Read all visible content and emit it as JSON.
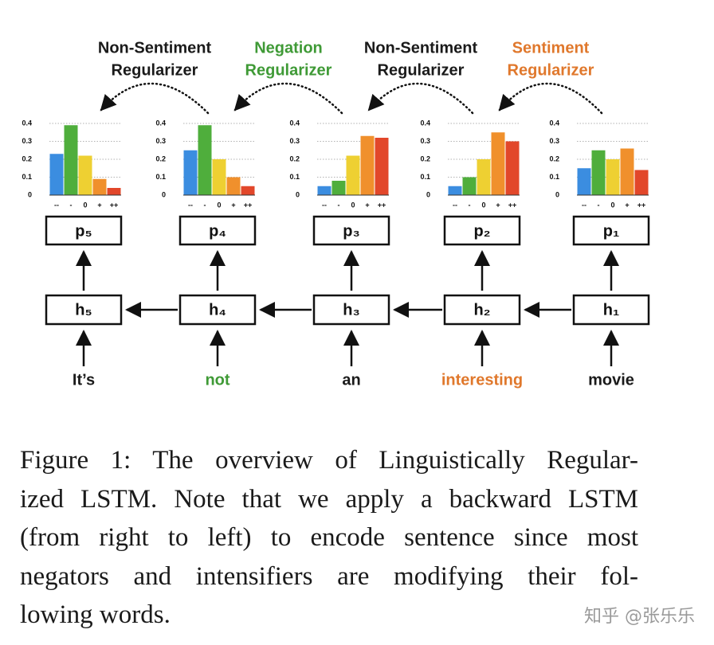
{
  "regularizers": [
    {
      "lines": [
        "Non-Sentiment",
        "Regularizer"
      ],
      "color": "#1a1a1a"
    },
    {
      "lines": [
        "Negation",
        "Regularizer"
      ],
      "color": "#3f9a36"
    },
    {
      "lines": [
        "Non-Sentiment",
        "Regularizer"
      ],
      "color": "#1a1a1a"
    },
    {
      "lines": [
        "Sentiment",
        "Regularizer"
      ],
      "color": "#e0782c"
    }
  ],
  "chart_data": [
    {
      "type": "bar",
      "categories": [
        "--",
        "-",
        "0",
        "+",
        "++"
      ],
      "values": [
        0.23,
        0.39,
        0.22,
        0.09,
        0.04
      ],
      "colors": [
        "#3b8de0",
        "#4fae3c",
        "#eed032",
        "#f0902c",
        "#e2472a"
      ],
      "ylim": [
        0,
        0.4
      ],
      "yticks": [
        0,
        0.1,
        0.2,
        0.3,
        0.4
      ],
      "grid": true
    },
    {
      "type": "bar",
      "categories": [
        "--",
        "-",
        "0",
        "+",
        "++"
      ],
      "values": [
        0.25,
        0.39,
        0.2,
        0.1,
        0.05
      ],
      "colors": [
        "#3b8de0",
        "#4fae3c",
        "#eed032",
        "#f0902c",
        "#e2472a"
      ],
      "ylim": [
        0,
        0.4
      ],
      "yticks": [
        0,
        0.1,
        0.2,
        0.3,
        0.4
      ],
      "grid": true
    },
    {
      "type": "bar",
      "categories": [
        "--",
        "-",
        "0",
        "+",
        "++"
      ],
      "values": [
        0.05,
        0.08,
        0.22,
        0.33,
        0.32
      ],
      "colors": [
        "#3b8de0",
        "#4fae3c",
        "#eed032",
        "#f0902c",
        "#e2472a"
      ],
      "ylim": [
        0,
        0.4
      ],
      "yticks": [
        0,
        0.1,
        0.2,
        0.3,
        0.4
      ],
      "grid": true
    },
    {
      "type": "bar",
      "categories": [
        "--",
        "-",
        "0",
        "+",
        "++"
      ],
      "values": [
        0.05,
        0.1,
        0.2,
        0.35,
        0.3
      ],
      "colors": [
        "#3b8de0",
        "#4fae3c",
        "#eed032",
        "#f0902c",
        "#e2472a"
      ],
      "ylim": [
        0,
        0.4
      ],
      "yticks": [
        0,
        0.1,
        0.2,
        0.3,
        0.4
      ],
      "grid": true
    },
    {
      "type": "bar",
      "categories": [
        "--",
        "-",
        "0",
        "+",
        "++"
      ],
      "values": [
        0.15,
        0.25,
        0.2,
        0.26,
        0.14
      ],
      "colors": [
        "#3b8de0",
        "#4fae3c",
        "#eed032",
        "#f0902c",
        "#e2472a"
      ],
      "ylim": [
        0,
        0.4
      ],
      "yticks": [
        0,
        0.1,
        0.2,
        0.3,
        0.4
      ],
      "grid": true
    }
  ],
  "columns": [
    {
      "p": "p₅",
      "h": "h₅",
      "word": "It’s",
      "word_color": "#1a1a1a"
    },
    {
      "p": "p₄",
      "h": "h₄",
      "word": "not",
      "word_color": "#3f9a36"
    },
    {
      "p": "p₃",
      "h": "h₃",
      "word": "an",
      "word_color": "#1a1a1a"
    },
    {
      "p": "p₂",
      "h": "h₂",
      "word": "interesting",
      "word_color": "#e0782c"
    },
    {
      "p": "p₁",
      "h": "h₁",
      "word": "movie",
      "word_color": "#1a1a1a"
    }
  ],
  "caption": [
    "Figure 1: The overview of Linguistically Regular-",
    "ized LSTM. Note that we apply a backward LSTM",
    "(from right to left) to encode sentence since most",
    "negators and intensifiers are modifying their fol-",
    "lowing words."
  ],
  "watermark": "知乎 @张乐乐"
}
